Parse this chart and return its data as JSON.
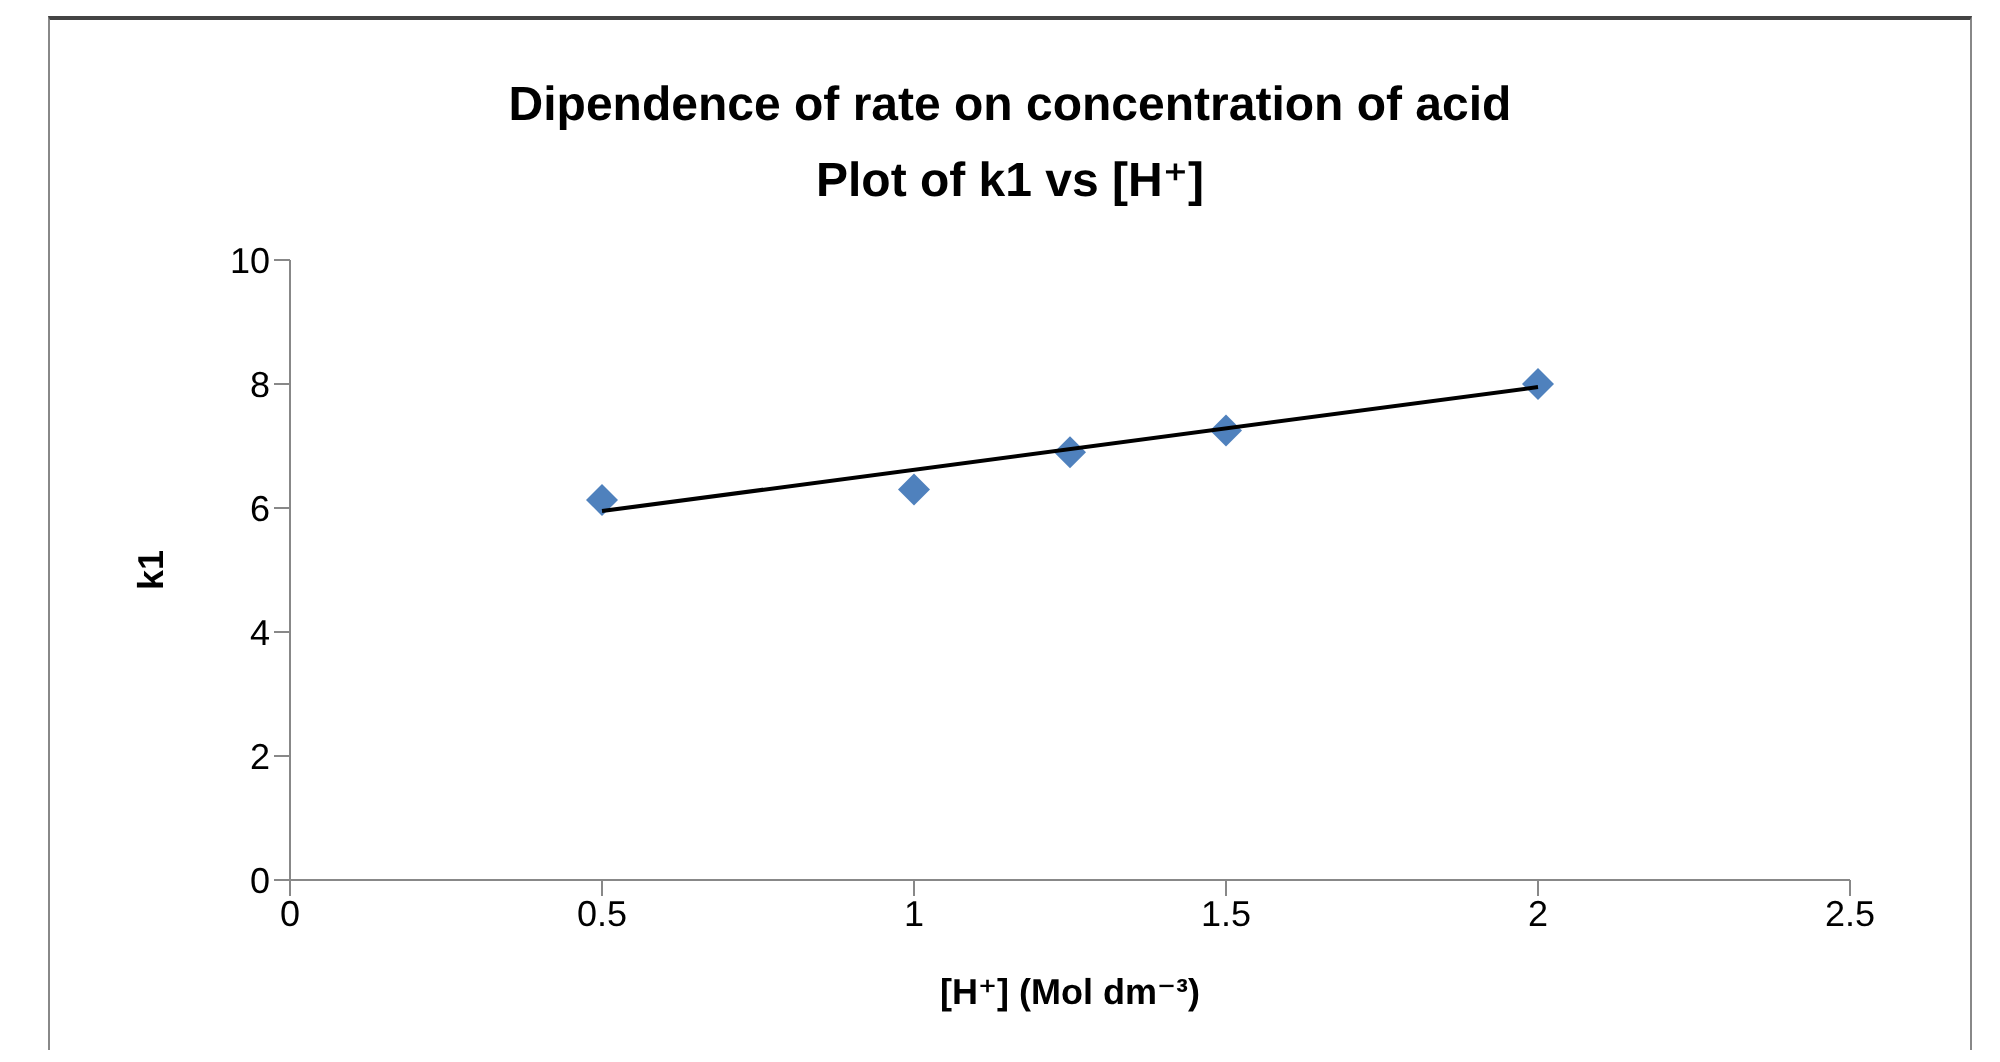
{
  "chart_data": {
    "type": "scatter",
    "title": "Dipendence of rate on concentration of acid",
    "subtitle": "Plot of k1 vs [H⁺]",
    "xlabel": "[H⁺] (Mol dm⁻³)",
    "ylabel": "k1",
    "x": [
      0.5,
      1,
      1.25,
      1.5,
      2
    ],
    "series": [
      {
        "color": "#4f81bd",
        "values": [
          6.13,
          6.3,
          6.9,
          7.25,
          8.0
        ],
        "marker": "diamond"
      },
      {
        "type": "line",
        "color": "#000000",
        "x": [
          0.5,
          2
        ],
        "values": [
          5.95,
          7.95
        ],
        "marker": "none"
      }
    ],
    "xlim": [
      0,
      2.5
    ],
    "xticks": [
      0,
      0.5,
      1,
      1.5,
      2,
      2.5
    ],
    "ylim": [
      0,
      10
    ],
    "yticks": [
      0,
      2,
      4,
      6,
      8,
      10
    ],
    "grid": false,
    "legend": false
  }
}
